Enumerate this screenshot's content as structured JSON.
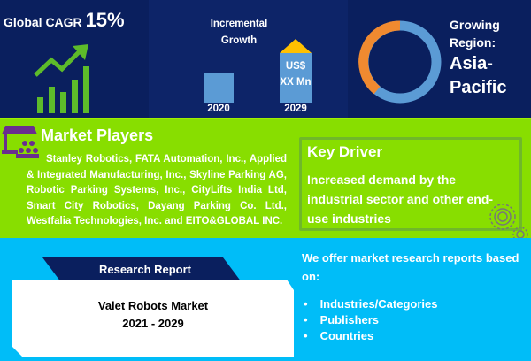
{
  "cagr": {
    "label": "Global CAGR",
    "value": "15%"
  },
  "growth": {
    "title_line1": "Incremental",
    "title_line2": "Growth",
    "bar1_year": "2020",
    "bar2_year": "2029",
    "bar2_value_line1": "US$",
    "bar2_value_line2": "XX Mn"
  },
  "region": {
    "label_line1": "Growing",
    "label_line2": "Region:",
    "value_line1": "Asia-",
    "value_line2": "Pacific"
  },
  "players": {
    "title": "Market Players",
    "text": "Stanley Robotics, FATA Automation, Inc., Applied & Integrated Manufacturing, Inc., Skyline Parking AG, Robotic Parking Systems, Inc., CityLifts India Ltd, Smart City Robotics, Dayang Parking Co. Ltd., Westfalia Technologies, Inc. and EITO&GLOBAL INC."
  },
  "driver": {
    "title": "Key Driver",
    "text": "Increased demand by the industrial sector and other end-use industries"
  },
  "report": {
    "tab": "Research Report",
    "title": "Valet Robots Market",
    "years": "2021 - 2029"
  },
  "offer": {
    "intro": "We offer market research reports based on:",
    "items": [
      "Industries/Categories",
      "Publishers",
      "Countries"
    ]
  },
  "colors": {
    "navy": "#0a1f5e",
    "green": "#88de00",
    "blue": "#00bdf8",
    "orange": "#f08a30",
    "lightblue": "#5b9bd5",
    "gold": "#ffc000"
  }
}
